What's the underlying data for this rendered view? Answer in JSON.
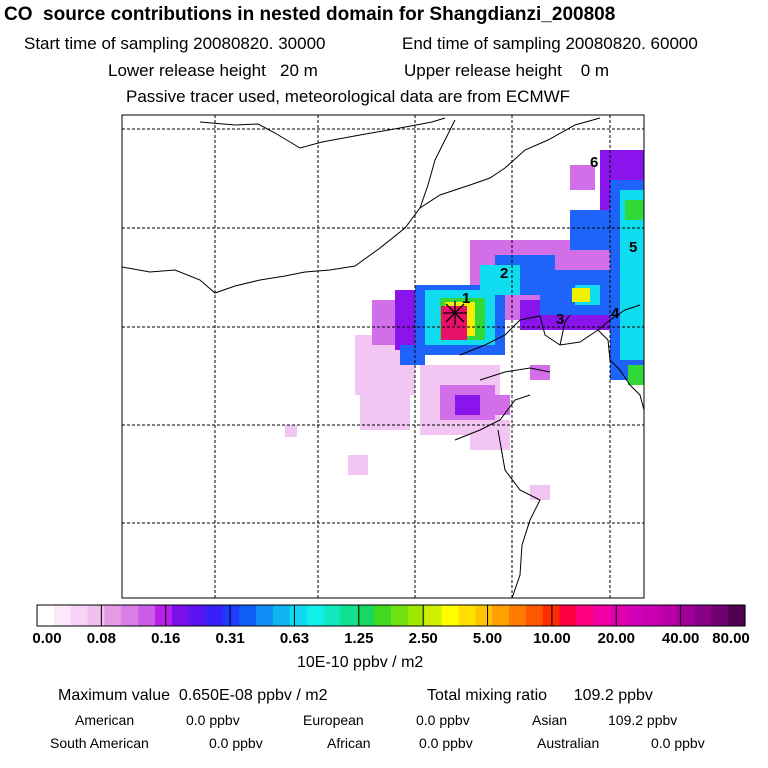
{
  "header": {
    "title": "CO  source contributions in nested domain for Shangdianzi_200808",
    "start_time": "Start time of sampling 20080820. 30000",
    "end_time": "End time of sampling 20080820. 60000",
    "lower_release": "Lower release height   20 m",
    "upper_release": "Upper release height    0 m",
    "tracer_note": "Passive tracer used, meteorological data are from ECMWF"
  },
  "map": {
    "station_labels": [
      "1",
      "2",
      "3",
      "4",
      "5",
      "6"
    ],
    "colors": {
      "frame": "#000000",
      "grid": "#000000",
      "coast": "#000000"
    }
  },
  "colorbar": {
    "tick_labels": [
      "0.00",
      "0.08",
      "0.16",
      "0.31",
      "0.63",
      "1.25",
      "2.50",
      "5.00",
      "10.00",
      "20.00",
      "40.00",
      "80.00"
    ],
    "unit": "10E-10 ppbv / m2",
    "colors": [
      "#ffffff",
      "#fbe8fb",
      "#f7d4f7",
      "#f0bff0",
      "#e39be6",
      "#d97ee6",
      "#cc5ce8",
      "#b820ec",
      "#7a10e8",
      "#5a14f0",
      "#3a20f8",
      "#1e3cfc",
      "#1060f8",
      "#108cf4",
      "#10b4f0",
      "#10d8f0",
      "#10f0e8",
      "#10e8c0",
      "#10e090",
      "#18d860",
      "#40d820",
      "#70e010",
      "#a0e800",
      "#d0f000",
      "#ffff00",
      "#ffe000",
      "#ffc400",
      "#ffa000",
      "#ff7c00",
      "#ff5800",
      "#ff2c00",
      "#ff0040",
      "#ff0080",
      "#f000a0",
      "#e000b0",
      "#d000b8",
      "#c800b0",
      "#b800a8",
      "#a00098",
      "#880088",
      "#700070",
      "#500050"
    ]
  },
  "footer": {
    "max_value": "Maximum value  0.650E-08 ppbv / m2",
    "total_mixing": "Total mixing ratio      109.2 ppbv",
    "regions": [
      {
        "name": "American",
        "value": "0.0 ppbv"
      },
      {
        "name": "European",
        "value": "0.0 ppbv"
      },
      {
        "name": "Asian",
        "value": "109.2 ppbv"
      },
      {
        "name": "South American",
        "value": "0.0 ppbv"
      },
      {
        "name": "African",
        "value": "0.0 ppbv"
      },
      {
        "name": "Australian",
        "value": "0.0 ppbv"
      }
    ]
  }
}
